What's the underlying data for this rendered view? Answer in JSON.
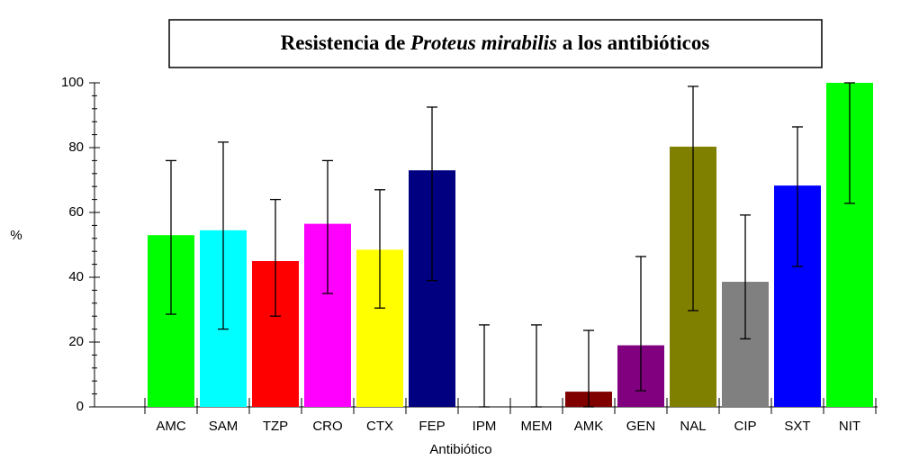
{
  "chart_data": {
    "type": "bar",
    "title": [
      "Resistencia de",
      "Proteus mirabilis",
      "a los antibióticos"
    ],
    "xlabel": "Antibiótico",
    "ylabel": "%",
    "categories": [
      "AMC",
      "SAM",
      "TZP",
      "CRO",
      "CTX",
      "FEP",
      "IPM",
      "MEM",
      "AMK",
      "GEN",
      "NAL",
      "CIP",
      "SXT",
      "NIT"
    ],
    "values": [
      53,
      54.5,
      45,
      56.5,
      48.5,
      73,
      0,
      0,
      4.7,
      19,
      80.3,
      38.6,
      68.3,
      100
    ],
    "ci_low": [
      28.6,
      24,
      28,
      35,
      30.5,
      39,
      0,
      0,
      0,
      5,
      29.7,
      21,
      43.3,
      62.8
    ],
    "ci_high": [
      76,
      81.7,
      64,
      76,
      67,
      92.5,
      25.3,
      25.3,
      23.6,
      46.4,
      98.9,
      59.2,
      86.4,
      100
    ],
    "colors": [
      "#00ff00",
      "#00ffff",
      "#ff0000",
      "#ff00ff",
      "#ffff00",
      "#000080",
      "#808080",
      "#808080",
      "#800000",
      "#800080",
      "#808000",
      "#808080",
      "#0000ff",
      "#00ff00"
    ],
    "ylim": [
      0,
      100
    ],
    "yticks": [
      0,
      20,
      40,
      60,
      80,
      100
    ],
    "yticks_minor": [
      4,
      8,
      12,
      16,
      24,
      28,
      32,
      36,
      44,
      48,
      52,
      56,
      64,
      68,
      72,
      76,
      84,
      88,
      92,
      96
    ]
  }
}
